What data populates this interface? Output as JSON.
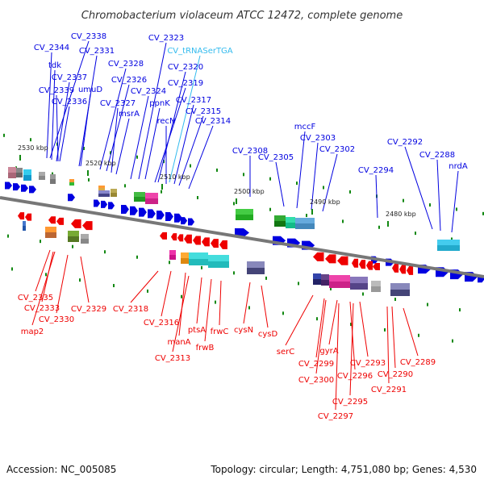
{
  "title": "Chromobacterium violaceum ATCC 12472, complete genome",
  "footer": {
    "accession": "Accession: NC_005085",
    "topology": "Topology: circular; Length: 4,751,080 bp; Genes: 4,530"
  },
  "colors": {
    "forward_gene": "#0000e0",
    "reverse_gene": "#ee0000",
    "trna_label": "#33bbee",
    "backbone": "#777777",
    "tick": "#118811"
  },
  "scale_labels": [
    "2530 kbp",
    "2520 kbp",
    "2510 kbp",
    "2500 kbp",
    "2490 kbp",
    "2480 kbp"
  ],
  "forward_labels": [
    "CV_2338",
    "CV_2344",
    "tdk",
    "CV_2337",
    "CV_2339",
    "CV_2336",
    "CV_2331",
    "umuD",
    "CV_2328",
    "CV_2326",
    "CV_2327",
    "msrA",
    "CV_2323",
    "CV_tRNASerTGA",
    "CV_2320",
    "CV_2319",
    "CV_2324",
    "ppnK",
    "CV_2317",
    "CV_2315",
    "recN",
    "CV_2314",
    "CV_2308",
    "CV_2305",
    "mccF",
    "CV_2303",
    "CV_2302",
    "CV_2294",
    "CV_2292",
    "CV_2288",
    "nrdA"
  ],
  "reverse_labels": [
    "CV_2335",
    "CV_2333",
    "map2",
    "CV_2330",
    "CV_2329",
    "CV_2318",
    "CV_2316",
    "manA",
    "CV_2313",
    "ptsA",
    "frwB",
    "frwC",
    "cysN",
    "cysD",
    "serC",
    "CV_2299",
    "gyrA",
    "CV_2300",
    "CV_2296",
    "CV_2293",
    "CV_2295",
    "CV_2297",
    "CV_2290",
    "CV_2291",
    "CV_2289"
  ]
}
